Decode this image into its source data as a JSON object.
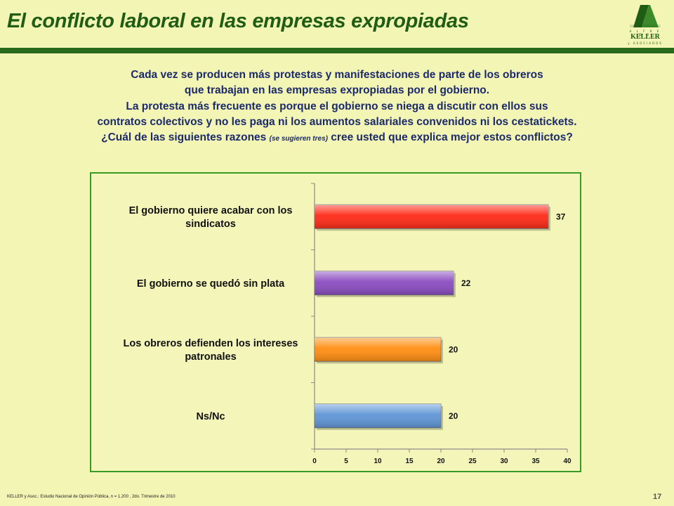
{
  "header": {
    "title": "El conflicto laboral en las empresas expropiadas",
    "logo": {
      "top": "A L F R E D O",
      "name": "KELLER",
      "sub": "y ASOCIADOS"
    }
  },
  "question": {
    "line1": "Cada vez se producen más protestas y manifestaciones de parte de los obreros",
    "line2": "que trabajan en las empresas expropiadas por el gobierno.",
    "line3": "La protesta más frecuente es porque el gobierno se niega a discutir con ellos sus",
    "line4": "contratos colectivos y no les paga ni los aumentos salariales convenidos ni los cestatickets.",
    "line5_a": "¿Cuál de las siguientes razones ",
    "line5_hint": "(se sugieren tres)",
    "line5_b": " cree usted que explica mejor estos conflictos?"
  },
  "chart_data": {
    "type": "bar",
    "orientation": "horizontal",
    "categories": [
      [
        "El gobierno quiere acabar con los",
        "sindicatos"
      ],
      [
        "El gobierno se quedó sin plata"
      ],
      [
        "Los obreros defienden los intereses",
        "patronales"
      ],
      [
        "Ns/Nc"
      ]
    ],
    "values": [
      37,
      22,
      20,
      20
    ],
    "colors": [
      "#ff2a17",
      "#8a4cc0",
      "#ff8e12",
      "#5f95d6"
    ],
    "xlim": [
      0,
      40
    ],
    "xticks": [
      0,
      5,
      10,
      15,
      20,
      25,
      30,
      35,
      40
    ],
    "data_labels": [
      "37",
      "22",
      "20",
      "20"
    ],
    "grid": false,
    "legend": "none"
  },
  "footer": {
    "source": "KELLER y Asoc.: Estudio Nacional de Opinión Pública, n = 1.200 , 2do. Trimestre de 2010",
    "page": "17"
  }
}
